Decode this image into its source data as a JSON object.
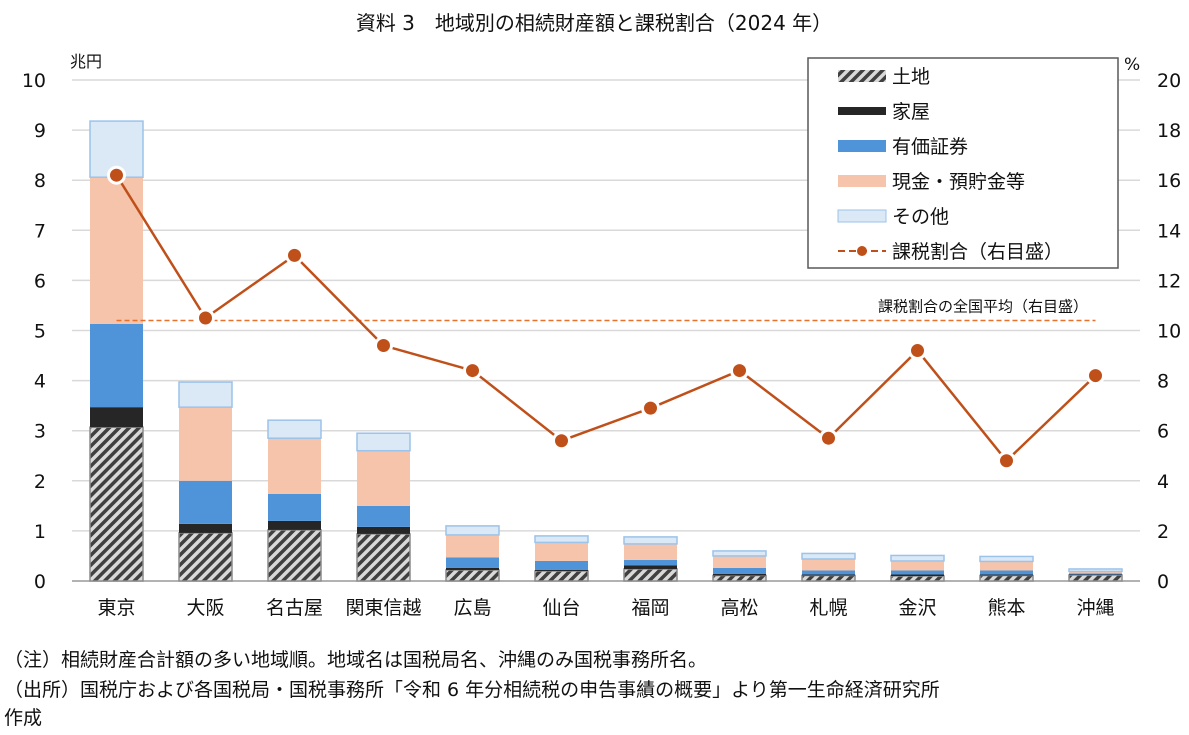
{
  "chart_data": {
    "type": "bar",
    "title": "資料 3　地域別の相続財産額と課税割合（2024 年）",
    "ylabel_left": "兆円",
    "ylabel_right": "%",
    "ylim_left": [
      0,
      10
    ],
    "ylim_right": [
      0,
      20
    ],
    "yticks_left": [
      "0",
      "1",
      "2",
      "3",
      "4",
      "5",
      "6",
      "7",
      "8",
      "9",
      "10"
    ],
    "yticks_right": [
      "0",
      "2",
      "4",
      "6",
      "8",
      "10",
      "12",
      "14",
      "16",
      "18",
      "20"
    ],
    "grid": true,
    "legend_position": "top-right",
    "categories": [
      "東京",
      "大阪",
      "名古屋",
      "関東信越",
      "広島",
      "仙台",
      "福岡",
      "高松",
      "札幌",
      "金沢",
      "熊本",
      "沖縄"
    ],
    "series": [
      {
        "name": "土地",
        "type": "stacked-bar",
        "color": "#7f7f7f",
        "pattern": "hatch",
        "values": [
          3.07,
          0.96,
          1.02,
          0.94,
          0.22,
          0.2,
          0.24,
          0.11,
          0.11,
          0.1,
          0.11,
          0.12
        ]
      },
      {
        "name": "家屋",
        "type": "stacked-bar",
        "color": "#262626",
        "values": [
          0.4,
          0.18,
          0.18,
          0.14,
          0.04,
          0.02,
          0.07,
          0.03,
          0.02,
          0.03,
          0.02,
          0.01
        ]
      },
      {
        "name": "有価証券",
        "type": "stacked-bar",
        "color": "#4f94d9",
        "values": [
          1.66,
          0.86,
          0.54,
          0.42,
          0.21,
          0.18,
          0.11,
          0.12,
          0.08,
          0.08,
          0.08,
          0.02
        ]
      },
      {
        "name": "現金・預貯金等",
        "type": "stacked-bar",
        "color": "#f6c4aa",
        "values": [
          2.93,
          1.47,
          1.11,
          1.1,
          0.45,
          0.37,
          0.32,
          0.24,
          0.23,
          0.19,
          0.18,
          0.04
        ]
      },
      {
        "name": "その他",
        "type": "stacked-bar",
        "color": "#dbe9f6",
        "values": [
          1.12,
          0.5,
          0.36,
          0.35,
          0.18,
          0.13,
          0.14,
          0.1,
          0.11,
          0.11,
          0.1,
          0.05
        ]
      },
      {
        "name": "課税割合（右目盛）",
        "type": "line",
        "axis": "right",
        "color": "#c0501a",
        "values": [
          16.2,
          10.5,
          13.0,
          9.4,
          8.4,
          5.6,
          6.9,
          8.4,
          5.7,
          9.2,
          4.8,
          8.2
        ]
      }
    ],
    "reference_line": {
      "label": "課税割合の全国平均（右目盛）",
      "value": 10.4,
      "axis": "right",
      "color": "#e8702a"
    }
  },
  "notes": [
    "（注）相続財産合計額の多い地域順。地域名は国税局名、沖縄のみ国税事務所名。",
    "（出所）国税庁および各国税局・国税事務所「令和 6 年分相続税の申告事績の概要」より第一生命経済研究所",
    "作成"
  ]
}
